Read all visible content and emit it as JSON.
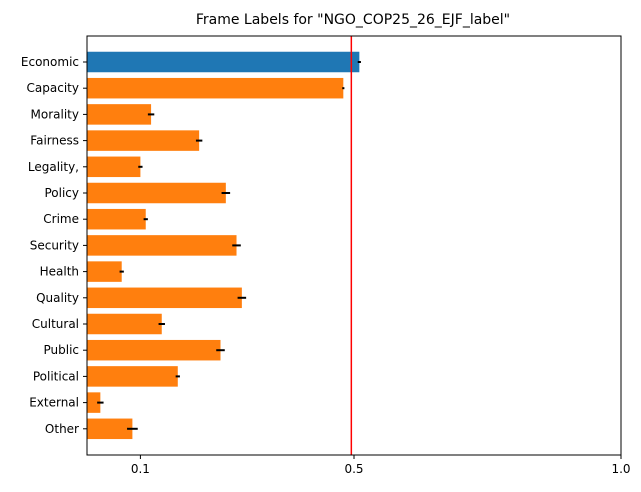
{
  "chart_data": {
    "type": "bar",
    "orientation": "horizontal",
    "title": "Frame Labels for \"NGO_COP25_26_EJF_label\"",
    "xlabel": "",
    "ylabel": "",
    "xlim": [
      0.0,
      1.0
    ],
    "xticks": [
      0.1,
      0.5,
      1.0
    ],
    "xtick_labels": [
      "0.1",
      "0.5",
      "1.0"
    ],
    "categories": [
      "Economic",
      "Capacity",
      "Morality",
      "Fairness",
      "Legality,",
      "Policy",
      "Crime",
      "Security",
      "Health",
      "Quality",
      "Cultural",
      "Public",
      "Political",
      "External",
      "Other"
    ],
    "values": [
      0.51,
      0.48,
      0.12,
      0.21,
      0.1,
      0.26,
      0.11,
      0.28,
      0.065,
      0.29,
      0.14,
      0.25,
      0.17,
      0.025,
      0.085
    ],
    "errors": [
      0.003,
      0.002,
      0.006,
      0.006,
      0.004,
      0.008,
      0.004,
      0.008,
      0.004,
      0.008,
      0.006,
      0.008,
      0.004,
      0.006,
      0.01
    ],
    "highlight_index": 0,
    "reference_line": 0.495,
    "grid": false,
    "colors": {
      "highlight": "#1f77b4",
      "bar": "#ff7f0e",
      "reference_line": "#ff0000",
      "error": "#000000"
    }
  }
}
